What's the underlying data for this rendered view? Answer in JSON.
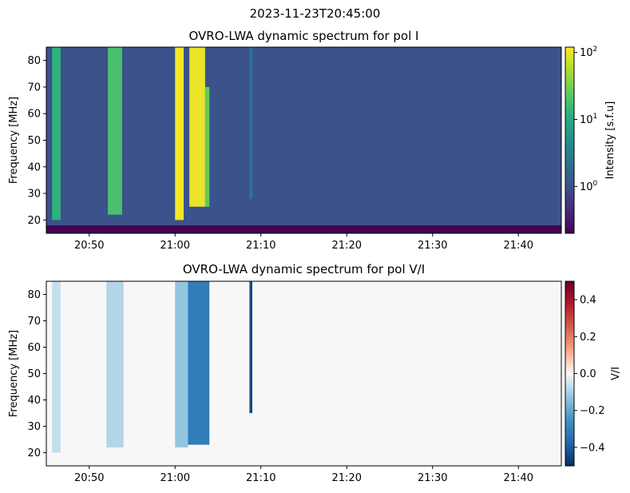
{
  "figure": {
    "suptitle": "2023-11-23T20:45:00"
  },
  "chart_data": [
    {
      "type": "heatmap",
      "title": "OVRO-LWA dynamic spectrum for pol I",
      "xlabel": "",
      "ylabel": "Frequency [MHz]",
      "x_range": [
        "20:45",
        "21:45"
      ],
      "ylim": [
        15,
        85
      ],
      "x_ticks": [
        "20:50",
        "21:00",
        "21:10",
        "21:20",
        "21:30",
        "21:40"
      ],
      "y_ticks": [
        20,
        30,
        40,
        50,
        60,
        70,
        80
      ],
      "colormap": "viridis",
      "colorbar": {
        "label": "Intensity [s.f.u]",
        "scale": "log",
        "range": [
          0.2,
          120
        ],
        "ticks": [
          {
            "base": "10",
            "exp": "0",
            "value": 1
          },
          {
            "base": "10",
            "exp": "1",
            "value": 10
          },
          {
            "base": "10",
            "exp": "2",
            "value": 100
          }
        ]
      },
      "background_level": 1.0,
      "low_band_level": 0.2,
      "bursts": [
        {
          "start": "20:45:40",
          "end": "20:46:40",
          "fmin": 20,
          "fmax": 85,
          "level": 12
        },
        {
          "start": "20:52:10",
          "end": "20:53:50",
          "fmin": 22,
          "fmax": 85,
          "level": 18
        },
        {
          "start": "21:00:00",
          "end": "21:01:00",
          "fmin": 20,
          "fmax": 85,
          "level": 110
        },
        {
          "start": "21:01:40",
          "end": "21:03:30",
          "fmin": 25,
          "fmax": 85,
          "level": 100
        },
        {
          "start": "21:03:30",
          "end": "21:04:00",
          "fmin": 25,
          "fmax": 70,
          "level": 25
        },
        {
          "start": "21:08:40",
          "end": "21:09:00",
          "fmin": 28,
          "fmax": 85,
          "level": 2.5
        }
      ]
    },
    {
      "type": "heatmap",
      "title": "OVRO-LWA dynamic spectrum for pol V/I",
      "xlabel": "",
      "ylabel": "Frequency [MHz]",
      "x_range": [
        "20:45",
        "21:45"
      ],
      "ylim": [
        15,
        85
      ],
      "x_ticks": [
        "20:50",
        "21:00",
        "21:10",
        "21:20",
        "21:30",
        "21:40"
      ],
      "y_ticks": [
        20,
        30,
        40,
        50,
        60,
        70,
        80
      ],
      "colormap": "RdBu_r",
      "colorbar": {
        "label": "V/I",
        "scale": "linear",
        "range": [
          -0.5,
          0.5
        ],
        "ticks": [
          {
            "label": "0.4",
            "value": 0.4
          },
          {
            "label": "0.2",
            "value": 0.2
          },
          {
            "label": "0.0",
            "value": 0.0
          },
          {
            "label": "−0.2",
            "value": -0.2
          },
          {
            "label": "−0.4",
            "value": -0.4
          }
        ]
      },
      "background_level": 0.0,
      "bursts": [
        {
          "start": "20:45:40",
          "end": "20:46:40",
          "fmin": 20,
          "fmax": 85,
          "level": -0.12
        },
        {
          "start": "20:52:00",
          "end": "20:54:00",
          "fmin": 22,
          "fmax": 85,
          "level": -0.15
        },
        {
          "start": "21:00:00",
          "end": "21:01:30",
          "fmin": 22,
          "fmax": 85,
          "level": -0.2
        },
        {
          "start": "21:01:30",
          "end": "21:04:00",
          "fmin": 23,
          "fmax": 85,
          "level": -0.35
        },
        {
          "start": "21:08:40",
          "end": "21:09:00",
          "fmin": 35,
          "fmax": 85,
          "level": -0.45
        }
      ]
    }
  ]
}
